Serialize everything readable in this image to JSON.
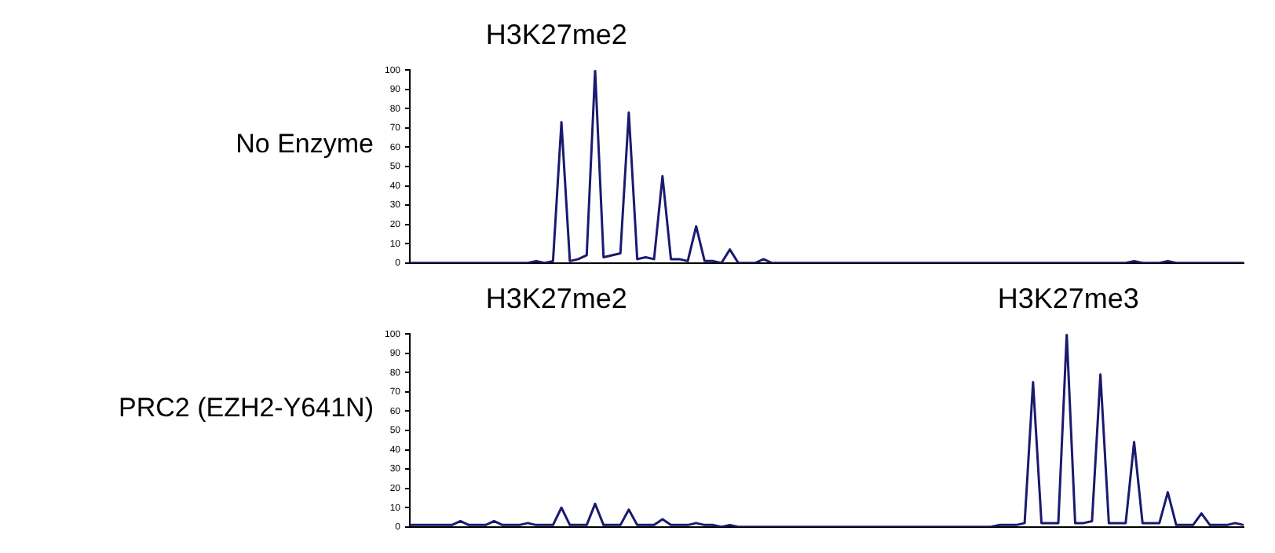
{
  "chart_data": [
    {
      "type": "line",
      "ylabel": "No Enzyme",
      "annotations": [
        "H3K27me2"
      ],
      "categories": [
        null,
        null,
        null,
        null,
        null,
        null,
        null,
        null,
        null,
        null,
        null,
        null,
        null,
        null,
        null,
        null,
        null,
        null,
        null,
        null,
        null,
        null,
        null,
        null,
        null,
        null,
        null,
        null,
        null,
        null,
        null,
        null,
        null,
        null,
        null,
        null,
        null,
        null,
        null,
        null,
        null,
        null,
        null,
        null,
        null,
        null,
        null,
        null,
        null,
        null,
        null,
        null,
        null,
        null,
        null,
        null,
        null,
        null,
        null,
        null,
        null,
        null,
        null,
        null,
        null,
        null,
        null,
        null,
        null,
        null,
        null,
        null,
        null,
        null,
        null,
        null,
        null,
        null,
        null,
        null,
        null,
        null,
        null,
        null,
        null,
        null,
        null,
        null,
        null,
        null,
        null,
        null,
        null,
        null,
        null,
        null,
        null,
        null,
        null,
        null
      ],
      "series": [
        {
          "color": "#1a1a6e",
          "values": [
            0,
            0,
            0,
            0,
            0,
            0,
            0,
            0,
            0,
            0,
            0,
            0,
            0,
            0,
            0,
            1,
            0,
            1,
            73,
            1,
            2,
            4,
            100,
            3,
            4,
            5,
            78,
            2,
            3,
            2,
            45,
            2,
            2,
            1,
            19,
            1,
            1,
            0,
            7,
            0,
            0,
            0,
            2,
            0,
            0,
            0,
            0,
            0,
            0,
            0,
            0,
            0,
            0,
            0,
            0,
            0,
            0,
            0,
            0,
            0,
            0,
            0,
            0,
            0,
            0,
            0,
            0,
            0,
            0,
            0,
            0,
            0,
            0,
            0,
            0,
            0,
            0,
            0,
            0,
            0,
            0,
            0,
            0,
            0,
            0,
            0,
            1,
            0,
            0,
            0,
            1,
            0,
            0,
            0,
            0,
            0,
            0,
            0,
            0,
            0
          ]
        }
      ],
      "ylim": [
        0,
        100
      ],
      "yticks": [
        0,
        10,
        20,
        30,
        40,
        50,
        60,
        70,
        80,
        90,
        100
      ],
      "grid": false,
      "legend": false,
      "marker": "none",
      "tick_labels": "y"
    },
    {
      "type": "line",
      "ylabel": "PRC2 (EZH2-Y641N)",
      "annotations": [
        "H3K27me2",
        "H3K27me3"
      ],
      "categories": [
        null,
        null,
        null,
        null,
        null,
        null,
        null,
        null,
        null,
        null,
        null,
        null,
        null,
        null,
        null,
        null,
        null,
        null,
        null,
        null,
        null,
        null,
        null,
        null,
        null,
        null,
        null,
        null,
        null,
        null,
        null,
        null,
        null,
        null,
        null,
        null,
        null,
        null,
        null,
        null,
        null,
        null,
        null,
        null,
        null,
        null,
        null,
        null,
        null,
        null,
        null,
        null,
        null,
        null,
        null,
        null,
        null,
        null,
        null,
        null,
        null,
        null,
        null,
        null,
        null,
        null,
        null,
        null,
        null,
        null,
        null,
        null,
        null,
        null,
        null,
        null,
        null,
        null,
        null,
        null,
        null,
        null,
        null,
        null,
        null,
        null,
        null,
        null,
        null,
        null,
        null,
        null,
        null,
        null,
        null,
        null,
        null,
        null,
        null,
        null
      ],
      "series": [
        {
          "color": "#1a1a6e",
          "values": [
            1,
            1,
            1,
            1,
            1,
            1,
            3,
            1,
            1,
            1,
            3,
            1,
            1,
            1,
            2,
            1,
            1,
            1,
            10,
            1,
            1,
            1,
            12,
            1,
            1,
            1,
            9,
            1,
            1,
            1,
            4,
            1,
            1,
            1,
            2,
            1,
            1,
            0,
            1,
            0,
            0,
            0,
            0,
            0,
            0,
            0,
            0,
            0,
            0,
            0,
            0,
            0,
            0,
            0,
            0,
            0,
            0,
            0,
            0,
            0,
            0,
            0,
            0,
            0,
            0,
            0,
            0,
            0,
            0,
            0,
            1,
            1,
            1,
            2,
            75,
            2,
            2,
            2,
            100,
            2,
            2,
            3,
            79,
            2,
            2,
            2,
            44,
            2,
            2,
            2,
            18,
            1,
            1,
            1,
            7,
            1,
            1,
            1,
            2,
            1
          ]
        }
      ],
      "ylim": [
        0,
        100
      ],
      "yticks": [
        0,
        10,
        20,
        30,
        40,
        50,
        60,
        70,
        80,
        90,
        100
      ],
      "grid": false,
      "legend": false,
      "marker": "none",
      "tick_labels": "y"
    }
  ]
}
